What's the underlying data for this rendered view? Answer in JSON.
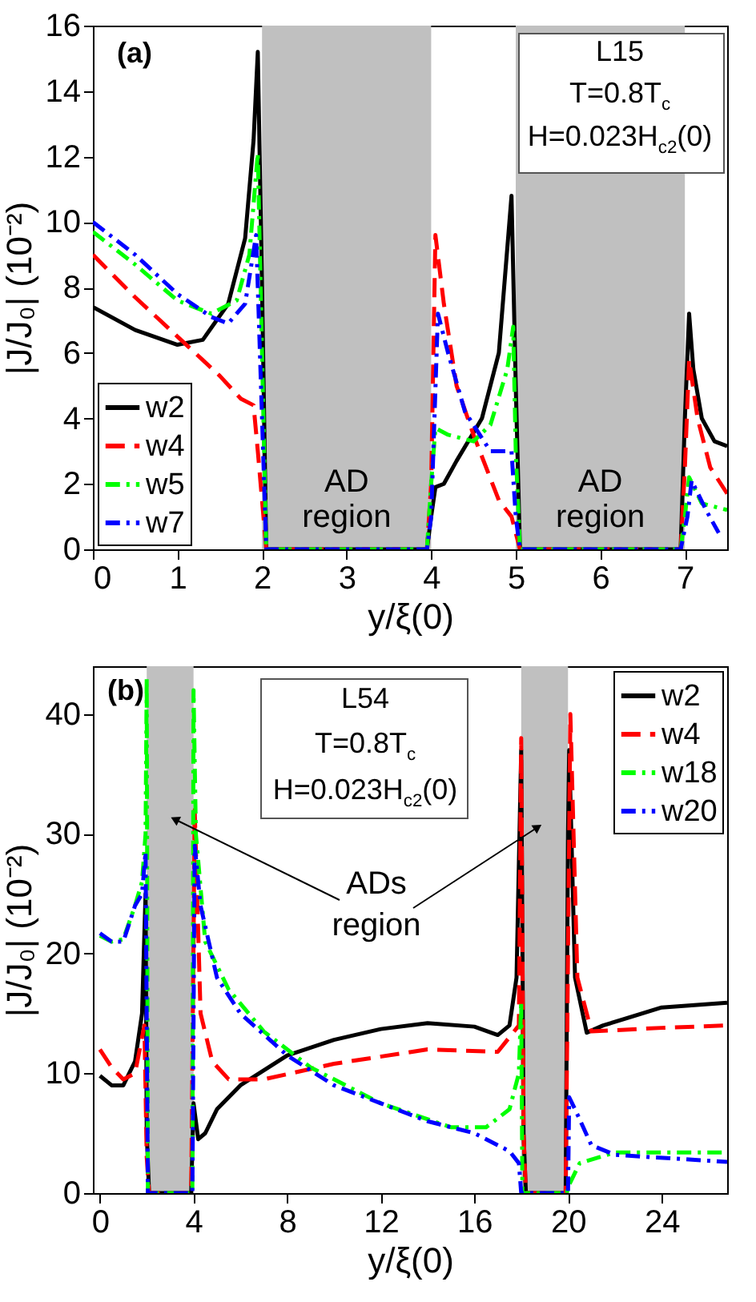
{
  "chart_data": [
    {
      "type": "line",
      "xlabel": "y/ξ(0)",
      "ylabel": "|J/J₀| (10⁻²)",
      "xlim": [
        0,
        7.5
      ],
      "xticks": [
        0,
        1,
        2,
        3,
        4,
        5,
        6,
        7
      ],
      "ylim": [
        0,
        16
      ],
      "yticks": [
        0,
        2,
        4,
        6,
        8,
        10,
        12,
        14,
        16
      ],
      "grid": false,
      "legend": "bottom left",
      "marker": "none",
      "annotations": [
        "(a)",
        "L15",
        "T=0.8T$_{c}$",
        "H=0.023H$_{c2}$(0)"
      ],
      "bands": [
        {
          "axis": "x",
          "from": 2,
          "to": 4,
          "label": "AD\nregion",
          "color": "#c0c0c0"
        },
        {
          "axis": "x",
          "from": 5,
          "to": 7,
          "label": "AD\nregion",
          "color": "#c0c0c0"
        }
      ],
      "series": [
        {
          "name": "w2",
          "color": "#000000",
          "line_style": "solid",
          "x": [
            0,
            0.5,
            1,
            1.3,
            1.6,
            1.8,
            1.9,
            1.95,
            2.0,
            2.05,
            3.95,
            4.0,
            4.05,
            4.15,
            4.3,
            4.6,
            4.8,
            4.95,
            5.0,
            5.05,
            6.95,
            7.0,
            7.05,
            7.1,
            7.2,
            7.35,
            7.5
          ],
          "values": [
            7.4,
            6.7,
            6.25,
            6.4,
            7.5,
            9.5,
            12.5,
            15.2,
            8,
            0,
            0,
            1.0,
            1.9,
            2.0,
            2.7,
            4.0,
            6.0,
            10.8,
            5,
            0,
            0,
            4,
            7.2,
            5.5,
            4.0,
            3.3,
            3.15
          ]
        },
        {
          "name": "w4",
          "color": "#ff0000",
          "line_style": "dashed",
          "x": [
            0,
            0.5,
            1,
            1.5,
            1.75,
            1.9,
            1.95,
            2.05,
            3.95,
            4.0,
            4.05,
            4.15,
            4.3,
            4.5,
            4.8,
            4.95,
            5.0,
            5.05,
            6.95,
            7.0,
            7.05,
            7.15,
            7.3,
            7.5
          ],
          "values": [
            9.0,
            7.7,
            6.5,
            5.3,
            4.6,
            4.4,
            3,
            0,
            0,
            2,
            9.6,
            7.5,
            5.0,
            3.5,
            1.5,
            1.0,
            0.5,
            0,
            0,
            2.5,
            5.8,
            4.0,
            2.5,
            1.7
          ]
        },
        {
          "name": "w5",
          "color": "#00ff00",
          "line_style": "dotted",
          "x": [
            0,
            0.5,
            1,
            1.4,
            1.7,
            1.85,
            1.95,
            2.0,
            2.05,
            3.95,
            4.0,
            4.05,
            4.2,
            4.5,
            4.7,
            4.9,
            4.97,
            5.0,
            5.05,
            6.95,
            7.0,
            7.05,
            7.2,
            7.5
          ],
          "values": [
            9.7,
            8.7,
            7.6,
            7.2,
            7.6,
            9,
            12.1,
            6,
            0,
            0,
            2,
            3.7,
            3.5,
            3.3,
            3.8,
            5.5,
            6.8,
            3,
            0,
            0,
            1,
            2.2,
            1.4,
            1.2
          ]
        },
        {
          "name": "w7",
          "color": "#0000ff",
          "line_style": "dotted",
          "x": [
            0,
            0.5,
            1,
            1.4,
            1.6,
            1.8,
            1.93,
            2.0,
            2.05,
            3.95,
            4.0,
            4.08,
            4.2,
            4.4,
            4.7,
            4.95,
            5.0,
            5.05,
            6.95,
            7.03,
            7.08,
            7.25,
            7.4
          ],
          "values": [
            10.0,
            9.0,
            7.8,
            7.1,
            6.9,
            7.5,
            9.6,
            4,
            0,
            0,
            1,
            7.2,
            6.0,
            4.2,
            3.0,
            3.0,
            1,
            0,
            0,
            1,
            2.1,
            1.2,
            0.5
          ]
        }
      ]
    },
    {
      "type": "line",
      "xlabel": "y/ξ(0)",
      "ylabel": "|J/J₀| (10⁻²)",
      "xlim": [
        -0.3,
        26.8
      ],
      "xticks": [
        0,
        4,
        8,
        12,
        16,
        20,
        24
      ],
      "ylim": [
        0,
        44
      ],
      "yticks": [
        0,
        10,
        20,
        30,
        40
      ],
      "grid": false,
      "legend": "top right",
      "marker": "none",
      "annotations": [
        "(b)",
        "L54",
        "T=0.8T$_{c}$",
        "H=0.023H$_{c2}$(0)",
        "ADs\nregion"
      ],
      "bands": [
        {
          "axis": "x",
          "from": 2,
          "to": 4,
          "color": "#c0c0c0"
        },
        {
          "axis": "x",
          "from": 18,
          "to": 20,
          "color": "#c0c0c0"
        }
      ],
      "series": [
        {
          "name": "w2",
          "color": "#000000",
          "line_style": "solid",
          "x": [
            0,
            0.5,
            1,
            1.5,
            1.8,
            1.95,
            2.0,
            2.1,
            3.9,
            4.0,
            4.2,
            4.5,
            5,
            6,
            8,
            10,
            12,
            14,
            16,
            17,
            17.5,
            17.8,
            18.0,
            18.1,
            18.2,
            19.9,
            20.0,
            20.05,
            20.3,
            20.8,
            21.5,
            24,
            26.8
          ],
          "values": [
            9.8,
            9.0,
            9.0,
            11,
            15,
            25,
            5,
            0,
            0,
            7.5,
            4.5,
            5,
            7,
            9,
            11.5,
            12.8,
            13.7,
            14.2,
            13.9,
            13.2,
            14,
            18,
            37,
            5,
            0,
            0,
            30,
            37,
            18,
            13.4,
            14,
            15.5,
            15.9
          ]
        },
        {
          "name": "w4",
          "color": "#ff0000",
          "line_style": "dashed",
          "x": [
            0,
            0.5,
            1,
            1.5,
            1.9,
            2.0,
            2.1,
            3.9,
            4.0,
            4.05,
            4.3,
            4.8,
            5.5,
            7,
            10,
            14,
            17,
            17.9,
            18.0,
            18.1,
            18.2,
            19.9,
            20.0,
            20.1,
            20.4,
            21,
            24,
            26.8
          ],
          "values": [
            12,
            10.5,
            9.5,
            10,
            14,
            3,
            0,
            0,
            21,
            32,
            15,
            11,
            9.5,
            9.5,
            10.8,
            12,
            11.8,
            14,
            38,
            5,
            0,
            0,
            20,
            40,
            18,
            13.5,
            13.8,
            14
          ]
        },
        {
          "name": "w18",
          "color": "#00ff00",
          "line_style": "dotted",
          "x": [
            0,
            0.5,
            1,
            1.5,
            1.8,
            1.95,
            2.0,
            2.05,
            3.95,
            4.0,
            4.1,
            4.5,
            5.5,
            7,
            9,
            12,
            15,
            16.5,
            17.5,
            17.9,
            18.0,
            18.05,
            19.95,
            20.0,
            20.5,
            22,
            26.8
          ],
          "values": [
            21.5,
            21,
            21.2,
            24,
            26,
            30,
            43,
            0,
            0,
            42,
            30,
            21,
            17,
            13.5,
            10.5,
            7.5,
            5.5,
            5.5,
            7,
            10,
            16,
            0,
            0,
            0.5,
            2.5,
            3.4,
            3.4
          ]
        },
        {
          "name": "w20",
          "color": "#0000ff",
          "line_style": "dotted",
          "x": [
            0,
            0.5,
            1,
            1.5,
            1.8,
            1.95,
            2.05,
            3.95,
            4.05,
            4.3,
            5,
            6,
            8,
            10,
            12,
            14,
            16,
            17.5,
            17.9,
            18.0,
            20.0,
            20.05,
            20.3,
            21,
            22,
            26.8
          ],
          "values": [
            21.7,
            21,
            21,
            24,
            25,
            28.5,
            0,
            0,
            29,
            24,
            18,
            15,
            11.5,
            9,
            7.5,
            6,
            5,
            3.5,
            2.5,
            0,
            0,
            8,
            7,
            4,
            3.2,
            2.6
          ]
        }
      ]
    }
  ]
}
